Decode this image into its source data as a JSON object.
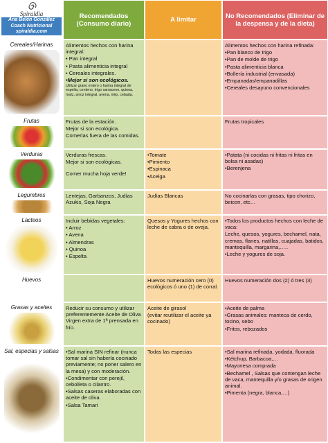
{
  "header": {
    "logo": "Spiraldia",
    "author": "Ana Belén González",
    "role": "Coach Nutricional",
    "site": "spiraldia.com",
    "columns": [
      "Recomendados (Consumo diario)",
      "A limitar",
      "No Recomendados (Eliminar de la despensa y de la dieta)"
    ]
  },
  "rows": [
    {
      "label": "Cereales/Harinas",
      "recommended": [
        "Alimentos hechos con harina integral:",
        "• Pan integral",
        "• Pasta alimenticia integral",
        "• Cereales integrales.",
        "•Mejor si son ecológicos.",
        "Utilizar grano entero o harina integral de espelta, centeno, trigo sarraceno, quinoa, maíz, arroz integral, avena, mijo, cebada."
      ],
      "limit": [],
      "not_recommended": [
        "Alimentos hechos con harina refinada:",
        "•Pan blanco de trigo",
        "•Pan de molde de trigo",
        "•Pasta alimenticia blanca",
        "•Bollería industrial (envasada)",
        "•Empanadas/empanadillas",
        "•Cereales desayuno convencionales"
      ]
    },
    {
      "label": "Frutas",
      "recommended": [
        "Frutas de la estación.",
        "Mejor si son ecológica.",
        "Comerlas fuera de las comidas."
      ],
      "limit": [],
      "not_recommended": [
        "Frutas tropicales"
      ]
    },
    {
      "label": "Verduras",
      "recommended": [
        "Verduras frescas.",
        "Mejor si son ecológicas.",
        "Comer mucha hoja verde!"
      ],
      "limit": [
        "•Tomate",
        "•Pimiento",
        "•Espinaca",
        "•Acelga"
      ],
      "not_recommended": [
        "•Patata (ni cocidas ni fritas ni fritas en bolsa ni asadas)",
        "•Berenjena"
      ]
    },
    {
      "label": "Legumbres",
      "recommended": [
        "Lentejas, Garbanzos, Judías Azukis, Soja Negra"
      ],
      "limit": [
        "Judías Blancas"
      ],
      "not_recommended": [
        "No cocinarlas con grasas, tipo chorizo, beicon, etc…"
      ]
    },
    {
      "label": "Lacteos",
      "recommended": [
        "Incluir bebidas vegetales:",
        "• Arroz",
        "• Avena",
        "• Almendras",
        "• Quinoa",
        "• Espelta"
      ],
      "limit": [
        "Quesos y Yogures hechos con leche de cabra o de oveja."
      ],
      "not_recommended": [
        "•Todos los productos hechos con leche de vaca:",
        "Leche, quesos, yogures, bechamel, nata, cremas, flanes, natillas, cuajadas, batidos, mantequilla, margarina,…..",
        "•Leche y yogures de soja."
      ]
    },
    {
      "label": "Huevos",
      "recommended": [],
      "limit": [
        "Huevos numeración cero (0) ecológicos ó uno (1) de corral."
      ],
      "not_recommended": [
        "Huevos numeración dos (2) ó tres (3)"
      ]
    },
    {
      "label": "Grasas y aceites",
      "recommended": [
        "Reducir su consumo y utilizar preferentemente Aceite de Oliva Virgen extra de 1ª prensada en frío."
      ],
      "limit": [
        "Aceite de girasol",
        "(evitar reutilizar el aceite ya cocinado)"
      ],
      "not_recommended": [
        "•Aceite de palma",
        "•Grasas animales: manteca de cerdo, tocino, sebo",
        "•Fritos, rebozados"
      ]
    },
    {
      "label": "Sal, especias y salsas",
      "recommended": [
        "•Sal marina SIN refinar (nunca tomar sal sin haberla cocinado previamente; no poner salero en la mesa) y con moderación.",
        "•Condimentar con perejil, cebolleta o cilantro.",
        "•Salsas caseras elaboradas con aceite de oliva.",
        "•Salsa Tamari"
      ],
      "limit": [
        "Todas las especias"
      ],
      "not_recommended": [
        "•Sal marina refinada, yodada, fluorada",
        "•Kétchup, Barbacoa,…",
        "•Mayonesa comprada",
        "•Bechamel , Salsas que contengan leche de vaca, mantequilla y/o grasas de origen animal.",
        "•Pimenta (negra, blanca,…)"
      ]
    }
  ]
}
